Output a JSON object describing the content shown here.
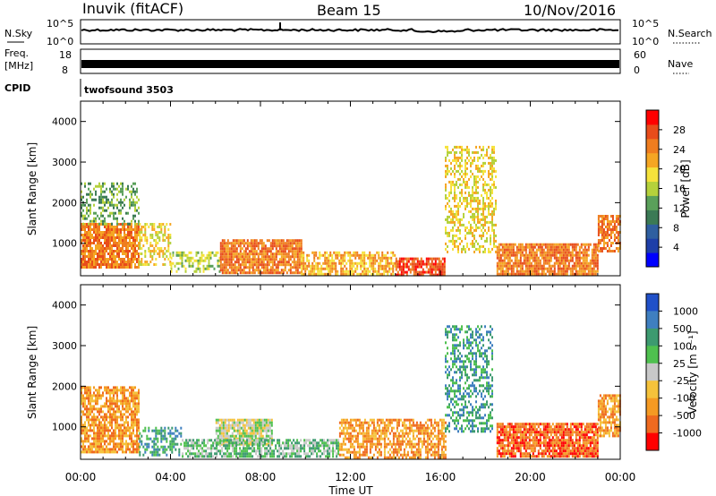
{
  "header": {
    "title": "Inuvik (fitACF)",
    "beam": "Beam 15",
    "date": "10/Nov/2016"
  },
  "status_panels": {
    "nsky_label": "N.Sky",
    "nsky_ticks": [
      "10^5",
      "10^0"
    ],
    "nsearch_label": "N.Search",
    "nsearch_ticks": [
      "10^5",
      "10^0"
    ],
    "freq_label": "Freq.",
    "freq_unit": "[MHz]",
    "freq_ticks": [
      "18",
      "8"
    ],
    "nave_label": "Nave",
    "nave_ticks": [
      "60",
      "0"
    ],
    "cpid_label": "CPID",
    "cpid_value": "twofsound 3503"
  },
  "chart_data": [
    {
      "type": "heatmap",
      "name": "power",
      "ylabel": "Slant Range [km]",
      "y_ticks": [
        1000,
        2000,
        3000,
        4000
      ],
      "ylim": [
        200,
        4500
      ],
      "x_ticks": [
        "00:00",
        "04:00",
        "08:00",
        "12:00",
        "16:00",
        "20:00",
        "00:00"
      ],
      "xlim_hours": [
        0,
        24
      ],
      "colorbar": {
        "label": "Power [dB]",
        "ticks": [
          "4",
          "8",
          "12",
          "16",
          "20",
          "24",
          "28"
        ],
        "colors": [
          "#0000ff",
          "#1e3fa8",
          "#2f5fa0",
          "#3b7a55",
          "#5aa05a",
          "#b5d13b",
          "#f5e23b",
          "#f5a623",
          "#ef7d1f",
          "#e84c1a",
          "#ff0000"
        ]
      },
      "regions": [
        {
          "t0": 0.0,
          "t1": 2.6,
          "r0": 400,
          "r1": 1500,
          "level": 8,
          "density": 0.85
        },
        {
          "t0": 0.0,
          "t1": 2.6,
          "r0": 1500,
          "r1": 2500,
          "level": 4,
          "density": 0.4
        },
        {
          "t0": 2.6,
          "t1": 4.0,
          "r0": 500,
          "r1": 1500,
          "level": 6,
          "density": 0.5
        },
        {
          "t0": 4.0,
          "t1": 6.2,
          "r0": 300,
          "r1": 800,
          "level": 5,
          "density": 0.5
        },
        {
          "t0": 6.2,
          "t1": 9.8,
          "r0": 300,
          "r1": 1100,
          "level": 8,
          "density": 0.85
        },
        {
          "t0": 9.8,
          "t1": 14.0,
          "r0": 250,
          "r1": 800,
          "level": 7,
          "density": 0.7
        },
        {
          "t0": 14.0,
          "t1": 16.2,
          "r0": 250,
          "r1": 650,
          "level": 9,
          "density": 0.8
        },
        {
          "t0": 16.2,
          "t1": 18.5,
          "r0": 800,
          "r1": 3400,
          "level": 6,
          "density": 0.45
        },
        {
          "t0": 18.5,
          "t1": 23.0,
          "r0": 250,
          "r1": 1000,
          "level": 8,
          "density": 0.85
        },
        {
          "t0": 23.0,
          "t1": 24.0,
          "r0": 800,
          "r1": 1700,
          "level": 8,
          "density": 0.7
        }
      ]
    },
    {
      "type": "heatmap",
      "name": "velocity",
      "ylabel": "Slant Range [km]",
      "y_ticks": [
        1000,
        2000,
        3000,
        4000
      ],
      "ylim": [
        200,
        4500
      ],
      "x_ticks": [
        "00:00",
        "04:00",
        "08:00",
        "12:00",
        "16:00",
        "20:00",
        "00:00"
      ],
      "xlabel": "Time UT",
      "xlim_hours": [
        0,
        24
      ],
      "colorbar": {
        "label": "Velocity [m s⁻¹]",
        "ticks": [
          "1000",
          "500",
          "100",
          "25",
          "-25",
          "-100",
          "-500",
          "-1000"
        ],
        "colors": [
          "#2050c8",
          "#3f7fc0",
          "#3d9a70",
          "#4fc04f",
          "#c8c8c8",
          "#f5c23b",
          "#f59a23",
          "#ef6a1f",
          "#ff0000"
        ]
      },
      "regions": [
        {
          "t0": 0.0,
          "t1": 2.6,
          "r0": 400,
          "r1": 2000,
          "level": 6,
          "density": 0.75
        },
        {
          "t0": 2.6,
          "t1": 4.5,
          "r0": 300,
          "r1": 1000,
          "level": 2,
          "density": 0.45
        },
        {
          "t0": 6.0,
          "t1": 8.5,
          "r0": 600,
          "r1": 1200,
          "level": 4,
          "density": 0.9
        },
        {
          "t0": 4.5,
          "t1": 11.5,
          "r0": 250,
          "r1": 700,
          "level": 3,
          "density": 0.7
        },
        {
          "t0": 11.5,
          "t1": 16.2,
          "r0": 250,
          "r1": 1200,
          "level": 6,
          "density": 0.65
        },
        {
          "t0": 16.2,
          "t1": 18.3,
          "r0": 900,
          "r1": 3500,
          "level": 2,
          "density": 0.45
        },
        {
          "t0": 18.5,
          "t1": 23.0,
          "r0": 250,
          "r1": 1100,
          "level": 7,
          "density": 0.85
        },
        {
          "t0": 23.0,
          "t1": 24.0,
          "r0": 800,
          "r1": 1800,
          "level": 6,
          "density": 0.75
        }
      ]
    }
  ]
}
